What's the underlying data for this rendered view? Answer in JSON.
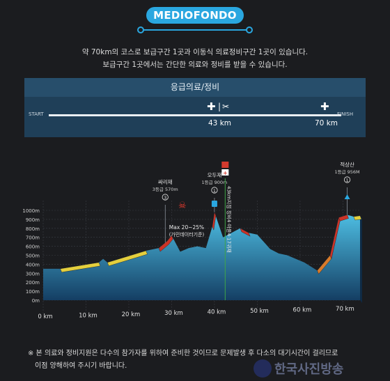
{
  "header": {
    "logo_text": "MEDIOFONDO",
    "intro_line1": "약 70km의 코스로 보급구간 1곳과 이동식 의료정비구간 1곳이 있습니다.",
    "intro_line2": "보급구간 1곳에서는 간단한 의료와 정비를 받을 수 있습니다."
  },
  "service_panel": {
    "title": "응급의료/정비",
    "start_label": "START",
    "finish_label": "FINISH",
    "stop1_km": "43 km",
    "stop2_km": "70 km",
    "stop1_icons": [
      "plus-icon",
      "tools-icon"
    ],
    "stop2_icons": [
      "plus-icon"
    ]
  },
  "chart_data": {
    "type": "area",
    "x_unit": "km",
    "xlim": [
      0,
      74
    ],
    "ylim": [
      0,
      1000
    ],
    "x_ticks": [
      "0 km",
      "10 km",
      "20 km",
      "30 km",
      "40 km",
      "50 km",
      "60 km",
      "70 km"
    ],
    "y_ticks": [
      "0m",
      "100m",
      "200m",
      "300m",
      "400m",
      "500m",
      "600m",
      "700m",
      "800m",
      "900m",
      "1000m"
    ],
    "profile": {
      "x": [
        0,
        4,
        13,
        14,
        15,
        24,
        27,
        29,
        30,
        32,
        34,
        36,
        38,
        39.5,
        40,
        42,
        46,
        48,
        50,
        53,
        55,
        57,
        61,
        64,
        67,
        69,
        71,
        72.5,
        74
      ],
      "y": [
        350,
        350,
        420,
        460,
        420,
        550,
        580,
        660,
        720,
        540,
        580,
        600,
        580,
        820,
        980,
        700,
        800,
        750,
        730,
        570,
        520,
        500,
        420,
        330,
        500,
        920,
        950,
        930,
        940
      ]
    },
    "annotations": [
      {
        "label": "싸리재",
        "sub": "3등급 570m",
        "badge": "3",
        "km": 28.5
      },
      {
        "label": "오두재",
        "sub": "1등급 900m",
        "badge": "1",
        "km": 40
      },
      {
        "label": "적상산",
        "sub": "1등급 956M",
        "badge": "1",
        "km": 71
      },
      {
        "label": "Max 20~25%",
        "sub": "(가민데이터기준)",
        "km": 33
      }
    ],
    "marker_text": "43km지점 정비4·마을4·17귀재"
  },
  "notice": {
    "line1": "※ 본 의료와 정비지원은 다수의 참가자를 위하여 준비한 것이므로 문제발생 후 다소의 대기시간이 걸리므로",
    "line2": "이점 양해하여 주시기 바랍니다."
  },
  "watermark": {
    "text": "한국사진방송"
  },
  "colors": {
    "accent": "#2aa7e0",
    "panel_header": "#274e6b",
    "panel_body": "#1f3f58",
    "area_top": "#4fc1e6",
    "area_bottom": "#143e63",
    "climb_red": "#cc3327",
    "climb_yellow": "#e4cf3d",
    "climb_orange": "#d87a2a"
  }
}
